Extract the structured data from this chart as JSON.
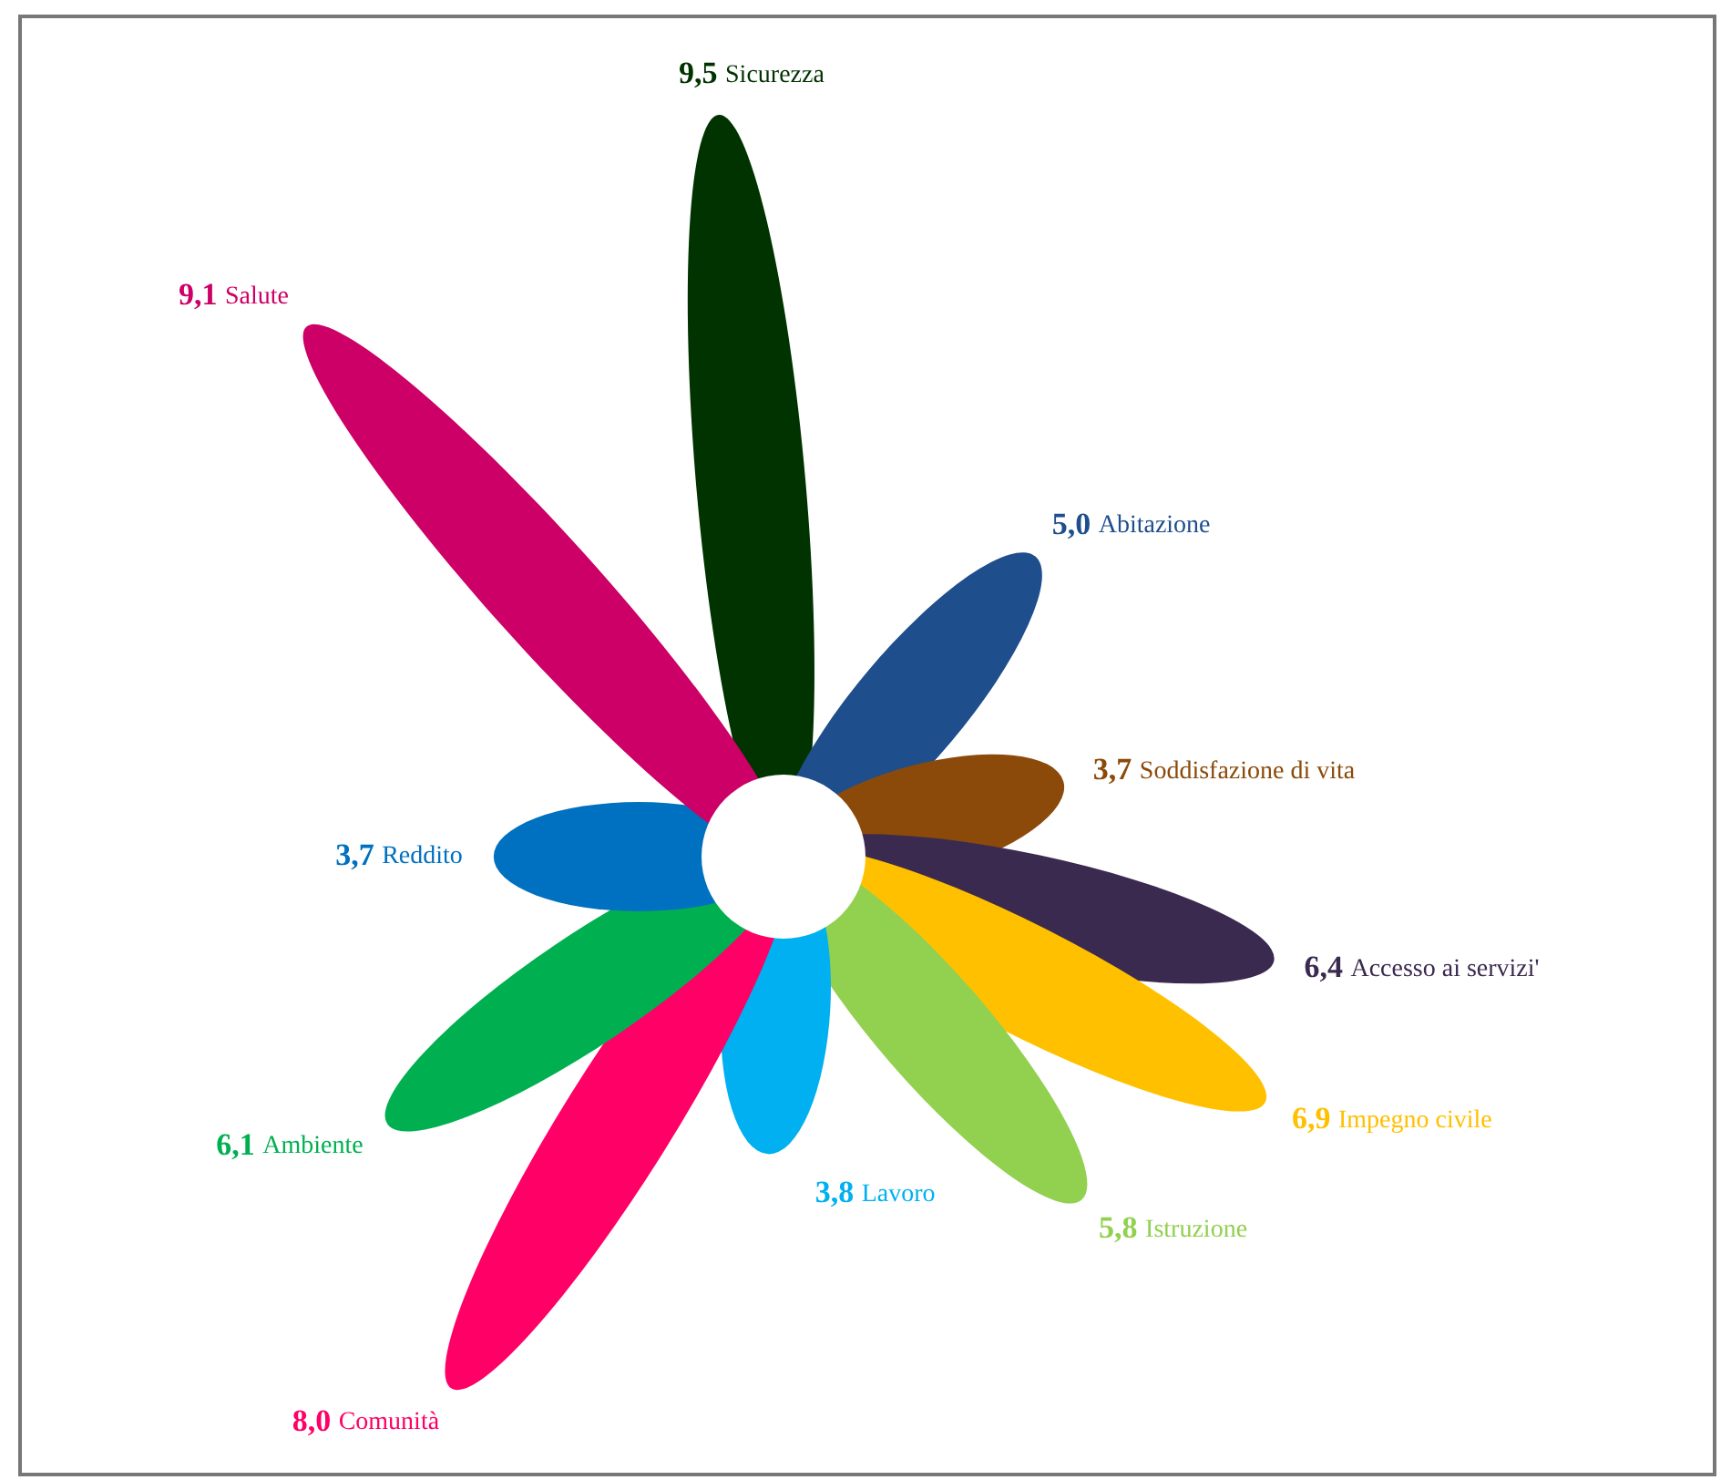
{
  "chart_data": {
    "type": "other",
    "categories": [
      "Sicurezza",
      "Abitazione",
      "Soddisfazione di vita",
      "Accesso ai servizi'",
      "Impegno civile",
      "Istruzione",
      "Lavoro",
      "Comunità",
      "Ambiente",
      "Reddito",
      "Salute"
    ],
    "values": [
      9.5,
      5.0,
      3.7,
      6.4,
      6.9,
      5.8,
      3.8,
      8.0,
      6.1,
      3.7,
      9.1
    ],
    "value_labels": [
      "9,5",
      "5,0",
      "3,7",
      "6,4",
      "6,9",
      "5,8",
      "3,8",
      "8,0",
      "6,1",
      "3,7",
      "9,1"
    ],
    "colors": [
      "#003300",
      "#1f4e8c",
      "#8b4a0a",
      "#3b2a4f",
      "#ffc000",
      "#92d050",
      "#00b0f0",
      "#ff0066",
      "#00b050",
      "#0070c0",
      "#cc0066"
    ]
  }
}
